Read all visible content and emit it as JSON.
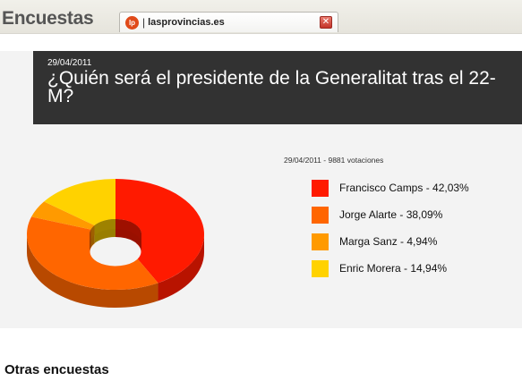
{
  "app": {
    "title": "Encuestas"
  },
  "tab": {
    "logo_text": "lp",
    "separator": "|",
    "label": "lasprovincias.es",
    "close_symbol": "✕"
  },
  "poll": {
    "date": "29/04/2011",
    "question": "¿Quién será el presidente de la Generalitat tras el 22-M?",
    "votes_line": "29/04/2011 - 9881 votaciones"
  },
  "chart_data": {
    "type": "pie",
    "title": "",
    "total_votes": 9881,
    "categories": [
      "Francisco Camps",
      "Jorge Alarte",
      "Marga Sanz",
      "Enric Morera"
    ],
    "values": [
      42.03,
      38.09,
      4.94,
      14.94
    ],
    "value_labels": [
      "42,03%",
      "38,09%",
      "4,94%",
      "14,94%"
    ],
    "colors": [
      "#ff1a00",
      "#ff6600",
      "#ff9a00",
      "#ffd200"
    ],
    "legend_entries": [
      "Francisco Camps  -  42,03%",
      "Jorge Alarte  -  38,09%",
      "Marga Sanz  -  4,94%",
      "Enric Morera  -  14,94%"
    ],
    "legend_position": "right",
    "style": "3d-donut"
  },
  "other": {
    "title": "Otras encuestas"
  }
}
